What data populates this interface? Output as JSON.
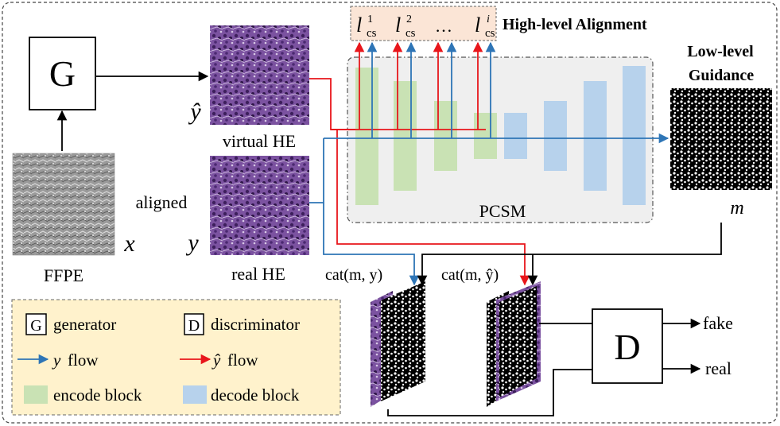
{
  "colors": {
    "encode_block": "#c9e2b4",
    "decode_block": "#b7d2ec",
    "y_flow": "#2e75b6",
    "yhat_flow": "#e8161b",
    "legend_bg": "#fff2cc",
    "loss_box_bg": "#fbe5d6",
    "pcsm_bg": "#efefef",
    "he_purple": "#8a63a8"
  },
  "generator": {
    "letter": "G"
  },
  "discriminator": {
    "letter": "D"
  },
  "inputs": {
    "ffpe_label": "FFPE",
    "x_symbol": "x",
    "aligned_label": "aligned"
  },
  "images": {
    "virtual_he_label": "virtual HE",
    "yhat_symbol": "ŷ",
    "real_he_label": "real HE",
    "y_symbol": "y",
    "mask_symbol": "m",
    "texture_icon": "tissue-texture",
    "mask_icon": "binary-mask-pattern"
  },
  "alignment": {
    "title": "High-level Alignment",
    "loss_base": "l",
    "loss_sub": "cs",
    "loss_sups": [
      "1",
      "2",
      "i"
    ],
    "ellipsis": "…"
  },
  "guidance": {
    "line1": "Low-level",
    "line2": "Guidance"
  },
  "pcsm": {
    "label": "PCSM"
  },
  "concat": {
    "real": "cat(m, y)",
    "fake": "cat(m, ŷ)"
  },
  "outputs": {
    "fake": "fake",
    "real": "real"
  },
  "legend": {
    "generator_box": "G",
    "generator": "generator",
    "discriminator_box": "D",
    "discriminator": "discriminator",
    "y_flow_symbol": "y",
    "y_flow_text": "flow",
    "yhat_flow_symbol": "ŷ",
    "yhat_flow_text": "flow",
    "encode": "encode block",
    "decode": "decode block"
  }
}
